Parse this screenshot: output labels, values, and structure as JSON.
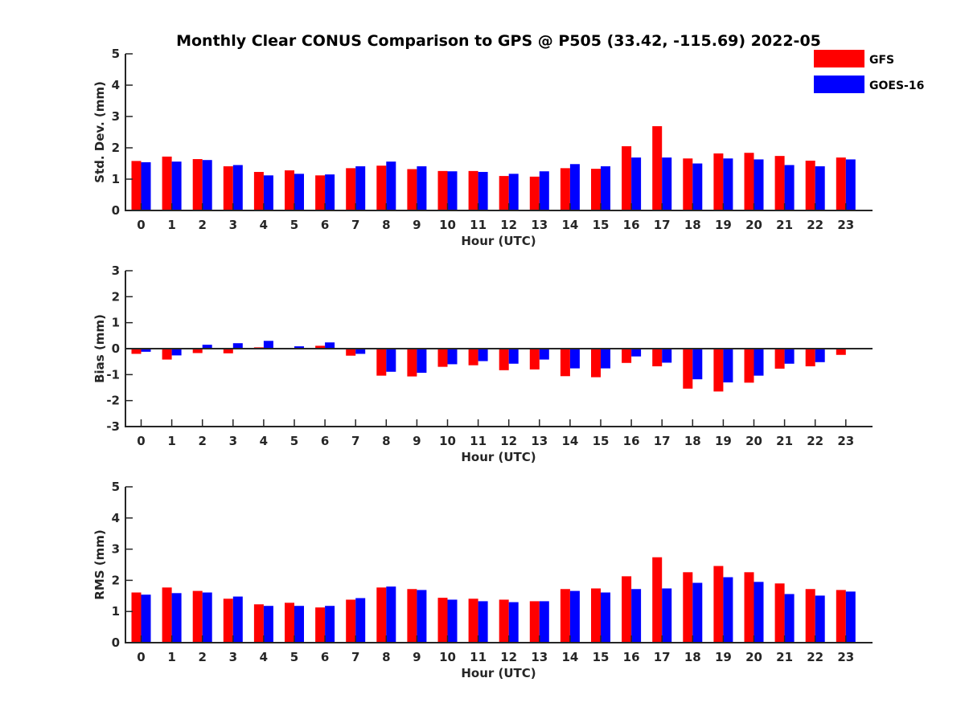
{
  "title": "Monthly Clear CONUS Comparison to GPS @ P505 (33.42, -115.69) 2022-05",
  "colors": {
    "gfs": "#ff0000",
    "goes": "#0000ff",
    "axis": "#262626"
  },
  "legend": [
    {
      "name": "GFS",
      "color": "#ff0000"
    },
    {
      "name": "GOES-16",
      "color": "#0000ff"
    }
  ],
  "chart_data": [
    {
      "type": "bar",
      "id": "stddev",
      "xlabel": "Hour (UTC)",
      "ylabel": "Std. Dev. (mm)",
      "ylim": [
        0,
        5
      ],
      "yticks": [
        "0",
        "1",
        "2",
        "3",
        "4",
        "5"
      ],
      "yticks_values": [
        0,
        1,
        2,
        3,
        4,
        5
      ],
      "categories": [
        "0",
        "1",
        "2",
        "3",
        "4",
        "5",
        "6",
        "7",
        "8",
        "9",
        "10",
        "11",
        "12",
        "13",
        "14",
        "15",
        "16",
        "17",
        "18",
        "19",
        "20",
        "21",
        "22",
        "23"
      ],
      "series": [
        {
          "name": "GFS",
          "values": [
            1.58,
            1.72,
            1.64,
            1.41,
            1.23,
            1.28,
            1.12,
            1.35,
            1.43,
            1.32,
            1.26,
            1.26,
            1.1,
            1.08,
            1.35,
            1.33,
            2.05,
            2.69,
            1.66,
            1.82,
            1.84,
            1.74,
            1.59,
            1.69
          ]
        },
        {
          "name": "GOES-16",
          "values": [
            1.54,
            1.56,
            1.61,
            1.45,
            1.12,
            1.17,
            1.15,
            1.41,
            1.56,
            1.41,
            1.25,
            1.23,
            1.17,
            1.25,
            1.48,
            1.41,
            1.69,
            1.69,
            1.5,
            1.66,
            1.63,
            1.45,
            1.41,
            1.63
          ]
        }
      ]
    },
    {
      "type": "bar",
      "id": "bias",
      "xlabel": "Hour (UTC)",
      "ylabel": "Bias (mm)",
      "ylim": [
        -3,
        3
      ],
      "yticks": [
        "-3",
        "-2",
        "-1",
        "0",
        "1",
        "2",
        "3"
      ],
      "yticks_values": [
        -3,
        -2,
        -1,
        0,
        1,
        2,
        3
      ],
      "categories": [
        "0",
        "1",
        "2",
        "3",
        "4",
        "5",
        "6",
        "7",
        "8",
        "9",
        "10",
        "11",
        "12",
        "13",
        "14",
        "15",
        "16",
        "17",
        "18",
        "19",
        "20",
        "21",
        "22",
        "23"
      ],
      "series": [
        {
          "name": "GFS",
          "values": [
            -0.2,
            -0.42,
            -0.17,
            -0.18,
            0.05,
            0.0,
            0.11,
            -0.27,
            -1.04,
            -1.07,
            -0.7,
            -0.64,
            -0.83,
            -0.8,
            -1.06,
            -1.1,
            -0.55,
            -0.68,
            -1.54,
            -1.65,
            -1.31,
            -0.77,
            -0.68,
            -0.24
          ]
        },
        {
          "name": "GOES-16",
          "values": [
            -0.12,
            -0.26,
            0.15,
            0.21,
            0.3,
            0.09,
            0.24,
            -0.2,
            -0.89,
            -0.93,
            -0.6,
            -0.48,
            -0.58,
            -0.42,
            -0.76,
            -0.76,
            -0.3,
            -0.54,
            -1.18,
            -1.3,
            -1.04,
            -0.58,
            -0.52,
            0.03
          ]
        }
      ]
    },
    {
      "type": "bar",
      "id": "rms",
      "xlabel": "Hour (UTC)",
      "ylabel": "RMS (mm)",
      "ylim": [
        0,
        5
      ],
      "yticks": [
        "0",
        "1",
        "2",
        "3",
        "4",
        "5"
      ],
      "yticks_values": [
        0,
        1,
        2,
        3,
        4,
        5
      ],
      "categories": [
        "0",
        "1",
        "2",
        "3",
        "4",
        "5",
        "6",
        "7",
        "8",
        "9",
        "10",
        "11",
        "12",
        "13",
        "14",
        "15",
        "16",
        "17",
        "18",
        "19",
        "20",
        "21",
        "22",
        "23"
      ],
      "series": [
        {
          "name": "GFS",
          "values": [
            1.61,
            1.77,
            1.66,
            1.41,
            1.23,
            1.28,
            1.13,
            1.38,
            1.77,
            1.72,
            1.44,
            1.41,
            1.38,
            1.33,
            1.72,
            1.74,
            2.13,
            2.74,
            2.26,
            2.46,
            2.26,
            1.9,
            1.72,
            1.69
          ]
        },
        {
          "name": "GOES-16",
          "values": [
            1.54,
            1.59,
            1.61,
            1.48,
            1.18,
            1.18,
            1.18,
            1.43,
            1.8,
            1.69,
            1.38,
            1.33,
            1.3,
            1.33,
            1.66,
            1.61,
            1.72,
            1.74,
            1.92,
            2.1,
            1.95,
            1.56,
            1.51,
            1.64
          ]
        }
      ]
    }
  ]
}
